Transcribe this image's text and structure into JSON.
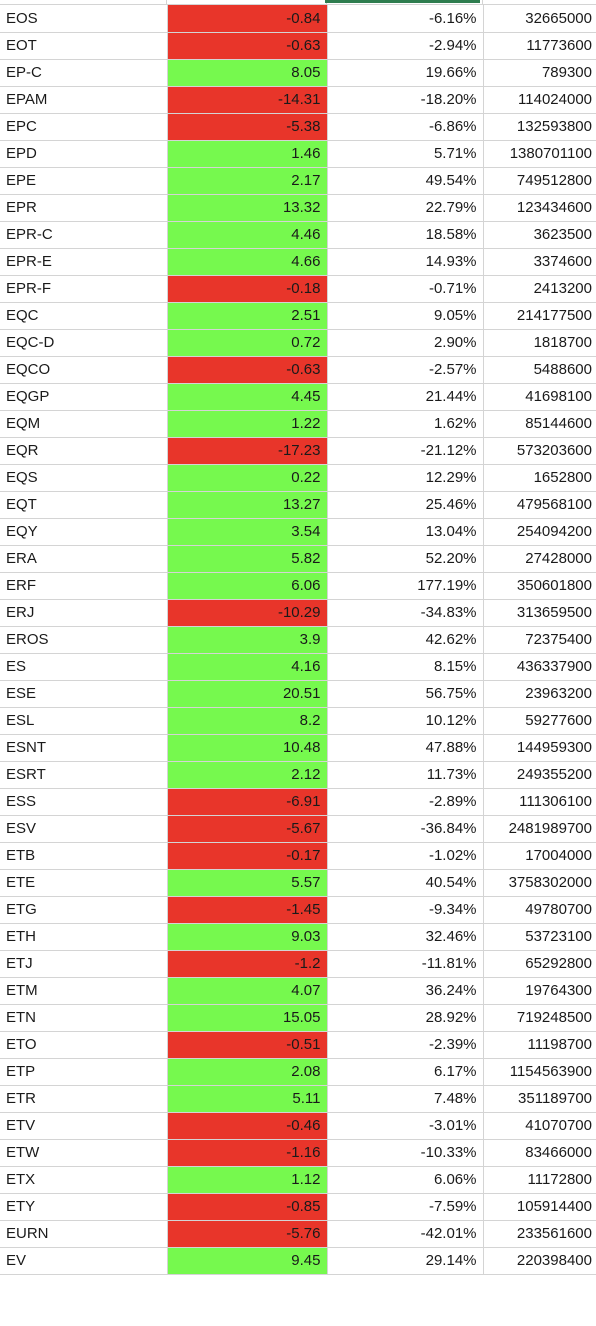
{
  "colors": {
    "positive": "#76f94e",
    "negative": "#e8352a",
    "selection": "#2e7d4f",
    "gridline": "#d4d4d4"
  },
  "rows": [
    {
      "ticker": "EOS",
      "change": "-0.84",
      "pct": "-6.16%",
      "volume": "32665000"
    },
    {
      "ticker": "EOT",
      "change": "-0.63",
      "pct": "-2.94%",
      "volume": "11773600"
    },
    {
      "ticker": "EP-C",
      "change": "8.05",
      "pct": "19.66%",
      "volume": "789300"
    },
    {
      "ticker": "EPAM",
      "change": "-14.31",
      "pct": "-18.20%",
      "volume": "114024000"
    },
    {
      "ticker": "EPC",
      "change": "-5.38",
      "pct": "-6.86%",
      "volume": "132593800"
    },
    {
      "ticker": "EPD",
      "change": "1.46",
      "pct": "5.71%",
      "volume": "1380701100"
    },
    {
      "ticker": "EPE",
      "change": "2.17",
      "pct": "49.54%",
      "volume": "749512800"
    },
    {
      "ticker": "EPR",
      "change": "13.32",
      "pct": "22.79%",
      "volume": "123434600"
    },
    {
      "ticker": "EPR-C",
      "change": "4.46",
      "pct": "18.58%",
      "volume": "3623500"
    },
    {
      "ticker": "EPR-E",
      "change": "4.66",
      "pct": "14.93%",
      "volume": "3374600"
    },
    {
      "ticker": "EPR-F",
      "change": "-0.18",
      "pct": "-0.71%",
      "volume": "2413200"
    },
    {
      "ticker": "EQC",
      "change": "2.51",
      "pct": "9.05%",
      "volume": "214177500"
    },
    {
      "ticker": "EQC-D",
      "change": "0.72",
      "pct": "2.90%",
      "volume": "1818700"
    },
    {
      "ticker": "EQCO",
      "change": "-0.63",
      "pct": "-2.57%",
      "volume": "5488600"
    },
    {
      "ticker": "EQGP",
      "change": "4.45",
      "pct": "21.44%",
      "volume": "41698100"
    },
    {
      "ticker": "EQM",
      "change": "1.22",
      "pct": "1.62%",
      "volume": "85144600"
    },
    {
      "ticker": "EQR",
      "change": "-17.23",
      "pct": "-21.12%",
      "volume": "573203600"
    },
    {
      "ticker": "EQS",
      "change": "0.22",
      "pct": "12.29%",
      "volume": "1652800"
    },
    {
      "ticker": "EQT",
      "change": "13.27",
      "pct": "25.46%",
      "volume": "479568100"
    },
    {
      "ticker": "EQY",
      "change": "3.54",
      "pct": "13.04%",
      "volume": "254094200"
    },
    {
      "ticker": "ERA",
      "change": "5.82",
      "pct": "52.20%",
      "volume": "27428000"
    },
    {
      "ticker": "ERF",
      "change": "6.06",
      "pct": "177.19%",
      "volume": "350601800"
    },
    {
      "ticker": "ERJ",
      "change": "-10.29",
      "pct": "-34.83%",
      "volume": "313659500"
    },
    {
      "ticker": "EROS",
      "change": "3.9",
      "pct": "42.62%",
      "volume": "72375400"
    },
    {
      "ticker": "ES",
      "change": "4.16",
      "pct": "8.15%",
      "volume": "436337900"
    },
    {
      "ticker": "ESE",
      "change": "20.51",
      "pct": "56.75%",
      "volume": "23963200"
    },
    {
      "ticker": "ESL",
      "change": "8.2",
      "pct": "10.12%",
      "volume": "59277600"
    },
    {
      "ticker": "ESNT",
      "change": "10.48",
      "pct": "47.88%",
      "volume": "144959300"
    },
    {
      "ticker": "ESRT",
      "change": "2.12",
      "pct": "11.73%",
      "volume": "249355200"
    },
    {
      "ticker": "ESS",
      "change": "-6.91",
      "pct": "-2.89%",
      "volume": "111306100"
    },
    {
      "ticker": "ESV",
      "change": "-5.67",
      "pct": "-36.84%",
      "volume": "2481989700"
    },
    {
      "ticker": "ETB",
      "change": "-0.17",
      "pct": "-1.02%",
      "volume": "17004000"
    },
    {
      "ticker": "ETE",
      "change": "5.57",
      "pct": "40.54%",
      "volume": "3758302000"
    },
    {
      "ticker": "ETG",
      "change": "-1.45",
      "pct": "-9.34%",
      "volume": "49780700"
    },
    {
      "ticker": "ETH",
      "change": "9.03",
      "pct": "32.46%",
      "volume": "53723100"
    },
    {
      "ticker": "ETJ",
      "change": "-1.2",
      "pct": "-11.81%",
      "volume": "65292800"
    },
    {
      "ticker": "ETM",
      "change": "4.07",
      "pct": "36.24%",
      "volume": "19764300"
    },
    {
      "ticker": "ETN",
      "change": "15.05",
      "pct": "28.92%",
      "volume": "719248500"
    },
    {
      "ticker": "ETO",
      "change": "-0.51",
      "pct": "-2.39%",
      "volume": "11198700"
    },
    {
      "ticker": "ETP",
      "change": "2.08",
      "pct": "6.17%",
      "volume": "1154563900"
    },
    {
      "ticker": "ETR",
      "change": "5.11",
      "pct": "7.48%",
      "volume": "351189700"
    },
    {
      "ticker": "ETV",
      "change": "-0.46",
      "pct": "-3.01%",
      "volume": "41070700"
    },
    {
      "ticker": "ETW",
      "change": "-1.16",
      "pct": "-10.33%",
      "volume": "83466000"
    },
    {
      "ticker": "ETX",
      "change": "1.12",
      "pct": "6.06%",
      "volume": "11172800"
    },
    {
      "ticker": "ETY",
      "change": "-0.85",
      "pct": "-7.59%",
      "volume": "105914400"
    },
    {
      "ticker": "EURN",
      "change": "-5.76",
      "pct": "-42.01%",
      "volume": "233561600"
    },
    {
      "ticker": "EV",
      "change": "9.45",
      "pct": "29.14%",
      "volume": "220398400"
    }
  ]
}
